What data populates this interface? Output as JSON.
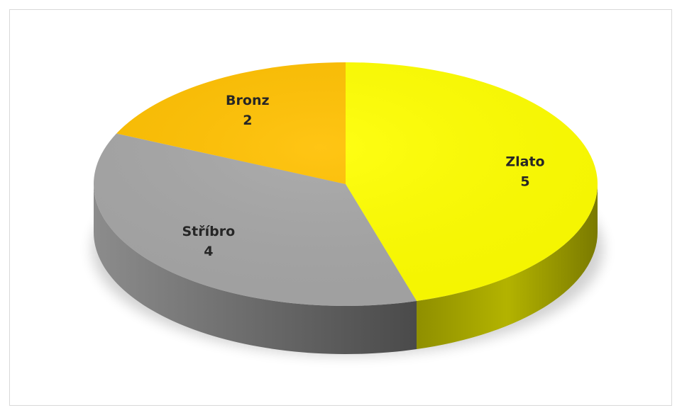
{
  "chart_data": {
    "type": "pie",
    "style": "3d",
    "categories": [
      "Zlato",
      "Stříbro",
      "Bronz"
    ],
    "values": [
      5,
      4,
      2
    ],
    "colors": [
      "#ffff00",
      "#a6a6a6",
      "#ffc000"
    ],
    "legend": "none",
    "data_labels": "category-and-value"
  }
}
